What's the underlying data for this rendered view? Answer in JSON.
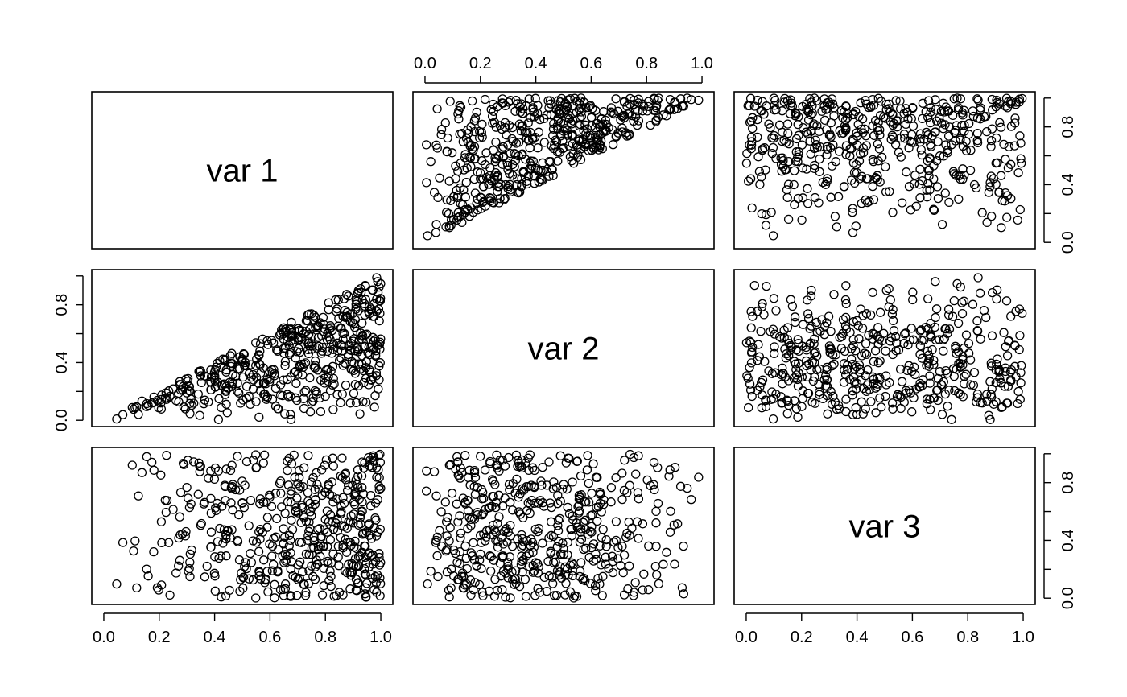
{
  "chart_data": {
    "type": "scatter",
    "kind": "scatterplot-matrix",
    "variables": [
      "var 1",
      "var 2",
      "var 3"
    ],
    "axis_range": [
      0,
      1
    ],
    "ticks": [
      0.0,
      0.2,
      0.4,
      0.6,
      0.8,
      1.0
    ],
    "tick_labels": [
      "0.0",
      "0.2",
      "0.4",
      "0.6",
      "0.8",
      "1.0"
    ],
    "n_points": 500,
    "marker": "open circle",
    "grid": false,
    "legend": "none",
    "relationships": [
      {
        "pair": [
          "var 1",
          "var 2"
        ],
        "pattern": "strong positive; points fan out from the origin to the top-right corner, var 2 <= var 1 in most points"
      },
      {
        "pair": [
          "var 1",
          "var 3"
        ],
        "pattern": "uniform, no correlation"
      },
      {
        "pair": [
          "var 2",
          "var 3"
        ],
        "pattern": "uniform, no correlation"
      }
    ],
    "axes": [
      {
        "position": "top",
        "panel_column": 2,
        "labels": [
          "0.0",
          "0.2",
          "0.4",
          "0.6",
          "0.8",
          "1.0"
        ]
      },
      {
        "position": "right",
        "panel_row": 1,
        "labels": [
          "0.0",
          "0.4",
          "0.8"
        ]
      },
      {
        "position": "left",
        "panel_row": 2,
        "labels": [
          "0.0",
          "0.4",
          "0.8"
        ]
      },
      {
        "position": "right",
        "panel_row": 3,
        "labels": [
          "0.0",
          "0.4",
          "0.8"
        ]
      },
      {
        "position": "bottom",
        "panel_column": 1,
        "labels": [
          "0.0",
          "0.2",
          "0.4",
          "0.6",
          "0.8",
          "1.0"
        ]
      },
      {
        "position": "bottom",
        "panel_column": 3,
        "labels": [
          "0.0",
          "0.2",
          "0.4",
          "0.6",
          "0.8",
          "1.0"
        ]
      }
    ]
  }
}
